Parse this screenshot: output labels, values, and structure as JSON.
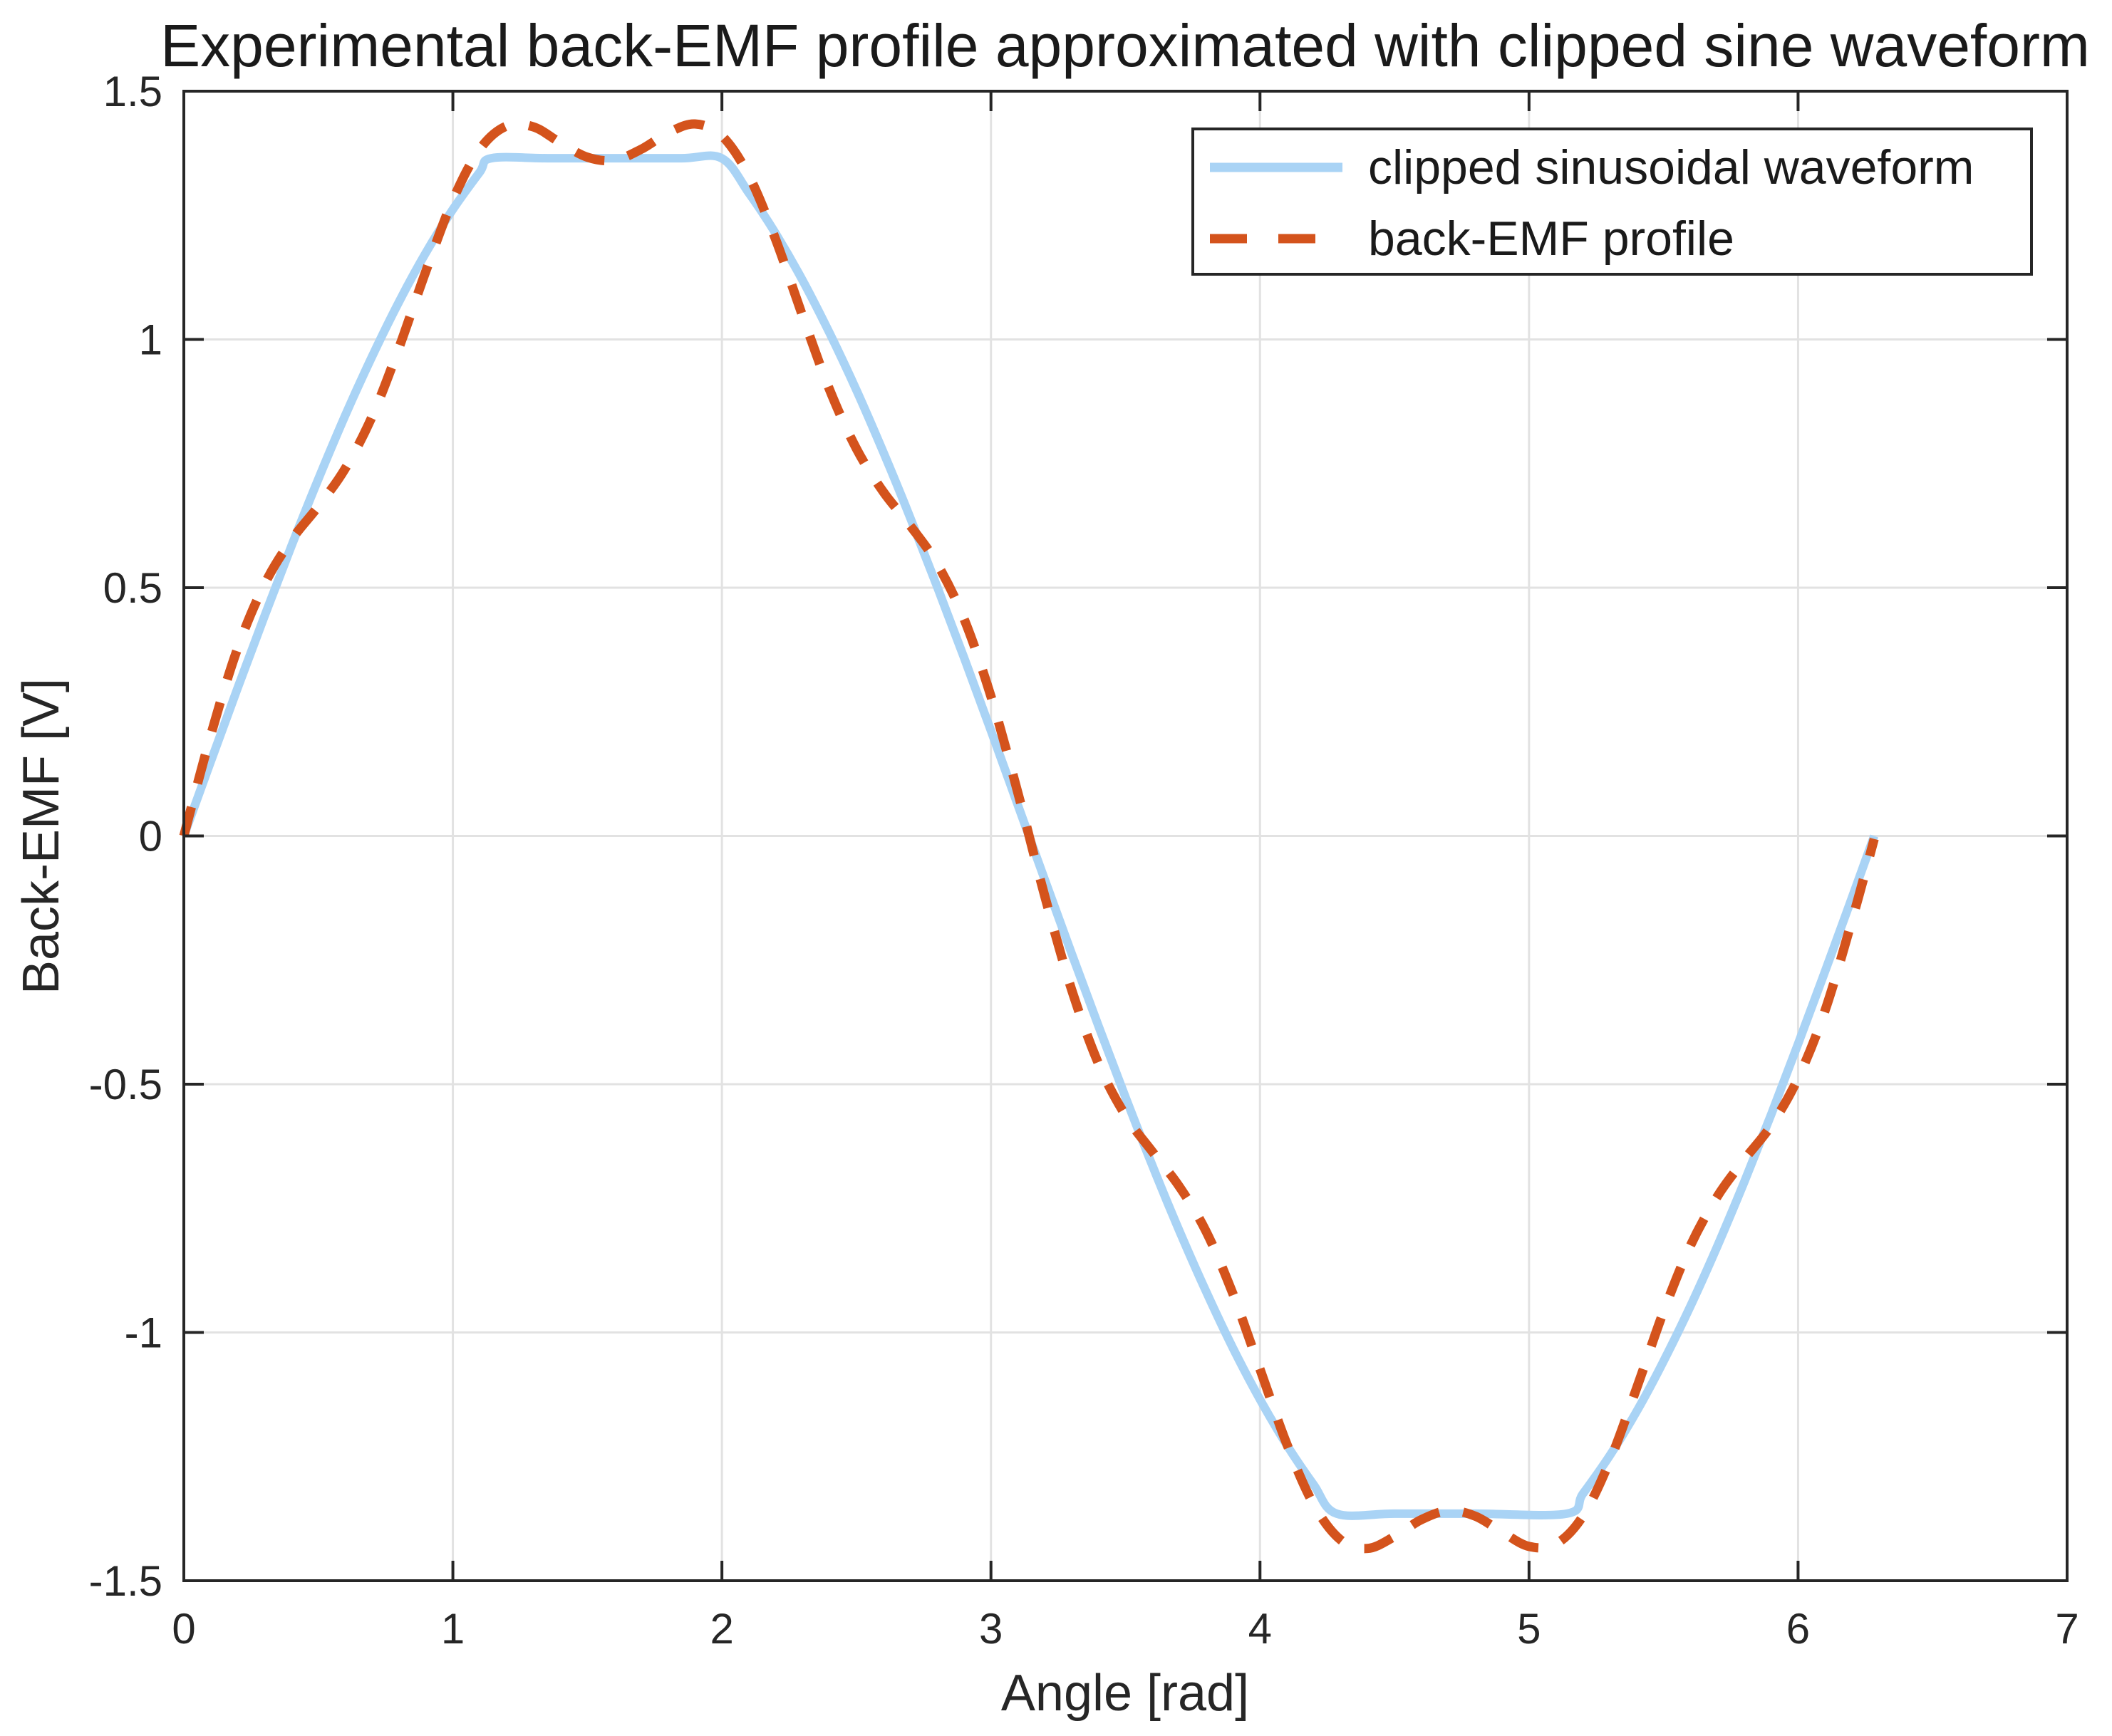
{
  "figure": {
    "title": "Experimental back-EMF profile approximated with clipped sine waveform",
    "x_label": "Angle [rad]",
    "y_label": "Back-EMF [V]"
  },
  "colors": {
    "clipped_waveform": "#a9d3f5",
    "backemf_profile": "#d4531c",
    "grid": "#e2e2e2",
    "axis_box": "#262626",
    "tick_text": "#262626",
    "title_text": "#1a1a1a",
    "background": "#ffffff"
  },
  "legend": {
    "items": [
      {
        "label": "clipped sinusoidal waveform",
        "style": "solid",
        "color": "#a9d3f5"
      },
      {
        "label": "back-EMF profile",
        "style": "dashed",
        "color": "#d4531c"
      }
    ]
  },
  "chart_data": {
    "type": "line",
    "title": "Experimental back-EMF profile approximated with clipped sine waveform",
    "xlabel": "Angle [rad]",
    "ylabel": "Back-EMF [V]",
    "xlim": [
      0,
      7
    ],
    "ylim": [
      -1.5,
      1.5
    ],
    "x_ticks": [
      0,
      1,
      2,
      3,
      4,
      5,
      6,
      7
    ],
    "x_tick_labels": [
      "0",
      "1",
      "2",
      "3",
      "4",
      "5",
      "6",
      "7"
    ],
    "y_ticks": [
      -1.5,
      -1,
      -0.5,
      0,
      0.5,
      1,
      1.5
    ],
    "y_tick_labels": [
      "-1.5",
      "-1",
      "-0.5",
      "0",
      "0.5",
      "1",
      "1.5"
    ],
    "grid": true,
    "x_grid_values": [
      1,
      2,
      3,
      4,
      5,
      6
    ],
    "y_grid_values": [
      -1,
      -0.5,
      0,
      0.5,
      1
    ],
    "legend_position": "top-right",
    "series": [
      {
        "name": "clipped sinusoidal waveform",
        "style": "solid",
        "color": "#a9d3f5",
        "points": [
          [
            0,
            0
          ],
          [
            0.1,
            0.15
          ],
          [
            0.2,
            0.298
          ],
          [
            0.3,
            0.443
          ],
          [
            0.4,
            0.584
          ],
          [
            0.5,
            0.719
          ],
          [
            0.6,
            0.847
          ],
          [
            0.7,
            0.966
          ],
          [
            0.8,
            1.076
          ],
          [
            0.9,
            1.175
          ],
          [
            1,
            1.262
          ],
          [
            1.1,
            1.337
          ],
          [
            1.143,
            1.365
          ],
          [
            1.35,
            1.365
          ],
          [
            1.6,
            1.365
          ],
          [
            1.85,
            1.365
          ],
          [
            1.999,
            1.365
          ],
          [
            2.1,
            1.295
          ],
          [
            2.2,
            1.213
          ],
          [
            2.3,
            1.119
          ],
          [
            2.4,
            1.013
          ],
          [
            2.5,
            0.898
          ],
          [
            2.6,
            0.773
          ],
          [
            2.7,
            0.641
          ],
          [
            2.8,
            0.502
          ],
          [
            2.9,
            0.359
          ],
          [
            3,
            0.212
          ],
          [
            3.1,
            0.062
          ],
          [
            3.2,
            -0.088
          ],
          [
            3.3,
            -0.237
          ],
          [
            3.4,
            -0.383
          ],
          [
            3.5,
            -0.526
          ],
          [
            3.6,
            -0.664
          ],
          [
            3.7,
            -0.795
          ],
          [
            3.8,
            -0.918
          ],
          [
            3.9,
            -1.032
          ],
          [
            4,
            -1.135
          ],
          [
            4.1,
            -1.227
          ],
          [
            4.2,
            -1.307
          ],
          [
            4.285,
            -1.365
          ],
          [
            4.5,
            -1.365
          ],
          [
            4.8,
            -1.365
          ],
          [
            5.14,
            -1.365
          ],
          [
            5.2,
            -1.325
          ],
          [
            5.3,
            -1.248
          ],
          [
            5.4,
            -1.159
          ],
          [
            5.5,
            -1.058
          ],
          [
            5.6,
            -0.947
          ],
          [
            5.7,
            -0.826
          ],
          [
            5.8,
            -0.697
          ],
          [
            5.9,
            -0.561
          ],
          [
            6,
            -0.419
          ],
          [
            6.1,
            -0.273
          ],
          [
            6.2,
            -0.125
          ],
          [
            6.283,
            0
          ]
        ]
      },
      {
        "name": "back-EMF profile",
        "style": "dashed",
        "color": "#d4531c",
        "points": [
          [
            0,
            0
          ],
          [
            0.1,
            0.203
          ],
          [
            0.2,
            0.378
          ],
          [
            0.3,
            0.507
          ],
          [
            0.4,
            0.596
          ],
          [
            0.5,
            0.664
          ],
          [
            0.6,
            0.74
          ],
          [
            0.7,
            0.845
          ],
          [
            0.8,
            0.984
          ],
          [
            0.9,
            1.138
          ],
          [
            1,
            1.281
          ],
          [
            1.1,
            1.383
          ],
          [
            1.2,
            1.43
          ],
          [
            1.3,
            1.428
          ],
          [
            1.4,
            1.396
          ],
          [
            1.5,
            1.367
          ],
          [
            1.6,
            1.361
          ],
          [
            1.7,
            1.383
          ],
          [
            1.8,
            1.416
          ],
          [
            1.9,
            1.434
          ],
          [
            2,
            1.41
          ],
          [
            2.1,
            1.33
          ],
          [
            2.2,
            1.201
          ],
          [
            2.3,
            1.047
          ],
          [
            2.4,
            0.899
          ],
          [
            2.5,
            0.78
          ],
          [
            2.6,
            0.693
          ],
          [
            2.7,
            0.625
          ],
          [
            2.8,
            0.548
          ],
          [
            2.9,
            0.437
          ],
          [
            3,
            0.281
          ],
          [
            3.1,
            0.087
          ],
          [
            3.2,
            -0.121
          ],
          [
            3.3,
            -0.31
          ],
          [
            3.4,
            -0.459
          ],
          [
            3.5,
            -0.563
          ],
          [
            3.6,
            -0.636
          ],
          [
            3.7,
            -0.706
          ],
          [
            3.8,
            -0.797
          ],
          [
            3.9,
            -0.923
          ],
          [
            4,
            -1.074
          ],
          [
            4.1,
            -1.225
          ],
          [
            4.2,
            -1.347
          ],
          [
            4.3,
            -1.418
          ],
          [
            4.4,
            -1.435
          ],
          [
            4.5,
            -1.411
          ],
          [
            4.6,
            -1.377
          ],
          [
            4.7,
            -1.359
          ],
          [
            4.8,
            -1.37
          ],
          [
            4.9,
            -1.402
          ],
          [
            5,
            -1.431
          ],
          [
            5.1,
            -1.426
          ],
          [
            5.2,
            -1.37
          ],
          [
            5.3,
            -1.259
          ],
          [
            5.4,
            -1.112
          ],
          [
            5.5,
            -0.958
          ],
          [
            5.6,
            -0.825
          ],
          [
            5.7,
            -0.726
          ],
          [
            5.8,
            -0.652
          ],
          [
            5.9,
            -0.583
          ],
          [
            6,
            -0.488
          ],
          [
            6.1,
            -0.352
          ],
          [
            6.2,
            -0.171
          ],
          [
            6.283,
            -0.006
          ]
        ]
      }
    ]
  }
}
